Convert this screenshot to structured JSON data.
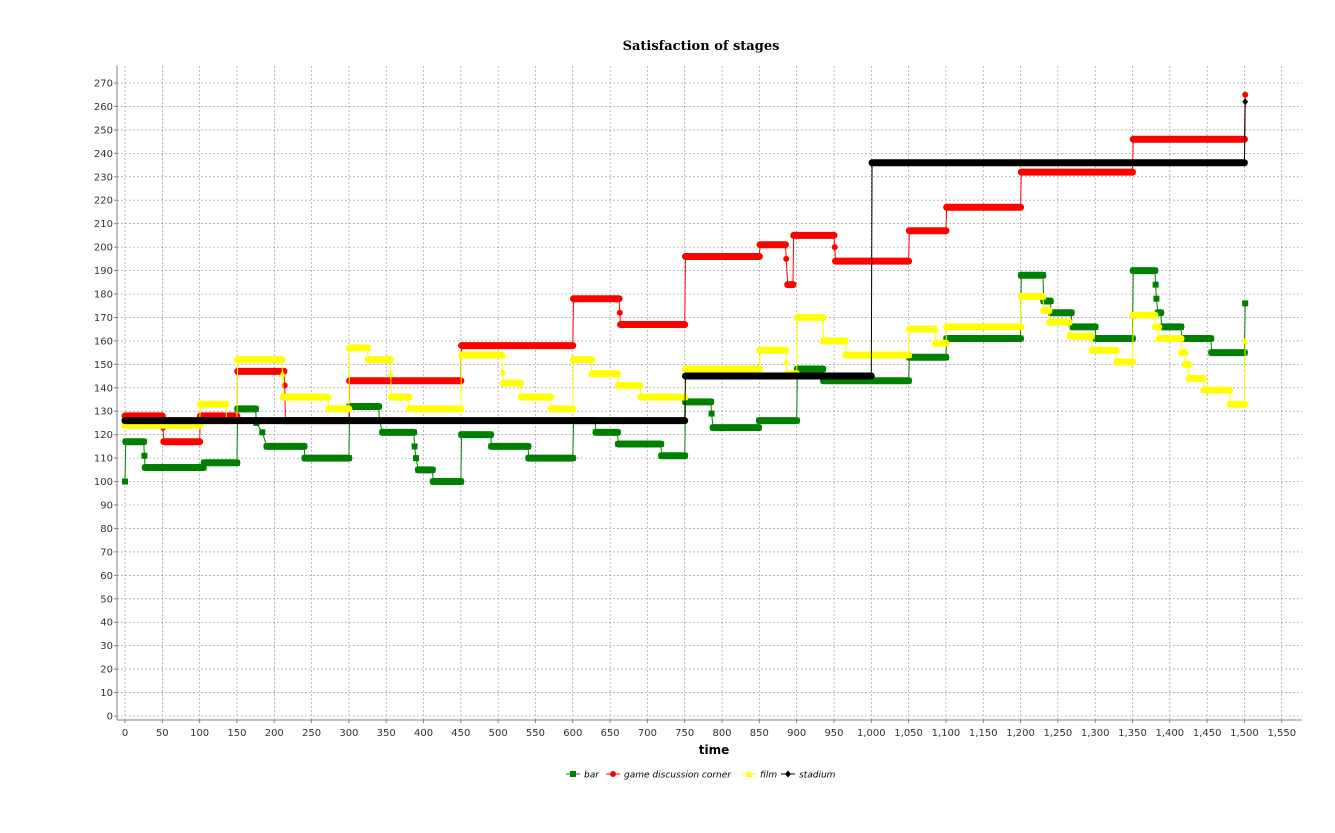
{
  "chart_data": {
    "type": "line",
    "step": true,
    "title": "Satisfaction of stages",
    "xlabel": "time",
    "ylabel": "",
    "xlim": [
      0,
      1580
    ],
    "ylim": [
      0,
      275
    ],
    "xticks": [
      0,
      50,
      100,
      150,
      200,
      250,
      300,
      350,
      400,
      450,
      500,
      550,
      600,
      650,
      700,
      750,
      800,
      850,
      900,
      950,
      1000,
      1050,
      1100,
      1150,
      1200,
      1250,
      1300,
      1350,
      1400,
      1450,
      1500,
      1550
    ],
    "xtick_labels": [
      "0",
      "50",
      "100",
      "150",
      "200",
      "250",
      "300",
      "350",
      "400",
      "450",
      "500",
      "550",
      "600",
      "650",
      "700",
      "750",
      "800",
      "850",
      "900",
      "950",
      "1,000",
      "1,050",
      "1,100",
      "1,150",
      "1,200",
      "1,250",
      "1,300",
      "1,350",
      "1,400",
      "1,450",
      "1,500",
      "1,550"
    ],
    "yticks": [
      0,
      10,
      20,
      30,
      40,
      50,
      60,
      70,
      80,
      90,
      100,
      110,
      120,
      130,
      140,
      150,
      160,
      170,
      180,
      190,
      200,
      210,
      220,
      230,
      240,
      250,
      260,
      270
    ],
    "ytick_labels": [
      "0",
      "10",
      "20",
      "30",
      "40",
      "50",
      "60",
      "70",
      "80",
      "90",
      "100",
      "110",
      "120",
      "130",
      "140",
      "150",
      "160",
      "170",
      "180",
      "190",
      "200",
      "210",
      "220",
      "230",
      "240",
      "250",
      "260",
      "270"
    ],
    "grid": true,
    "legend_position": "bottom",
    "series": [
      {
        "name": "bar",
        "color": "#008000",
        "marker": "square",
        "points": [
          [
            0,
            100
          ],
          [
            1,
            117
          ],
          [
            25,
            117
          ],
          [
            26,
            111
          ],
          [
            27,
            106
          ],
          [
            105,
            106
          ],
          [
            106,
            108
          ],
          [
            150,
            108
          ],
          [
            151,
            131
          ],
          [
            175,
            131
          ],
          [
            176,
            125
          ],
          [
            184,
            121
          ],
          [
            190,
            115
          ],
          [
            240,
            115
          ],
          [
            241,
            110
          ],
          [
            300,
            110
          ],
          [
            301,
            132
          ],
          [
            340,
            132
          ],
          [
            341,
            126
          ],
          [
            345,
            121
          ],
          [
            387,
            121
          ],
          [
            388,
            115
          ],
          [
            390,
            110
          ],
          [
            393,
            105
          ],
          [
            412,
            105
          ],
          [
            413,
            100
          ],
          [
            450,
            100
          ],
          [
            451,
            120
          ],
          [
            490,
            120
          ],
          [
            491,
            115
          ],
          [
            540,
            115
          ],
          [
            541,
            110
          ],
          [
            600,
            110
          ],
          [
            601,
            126
          ],
          [
            630,
            126
          ],
          [
            631,
            121
          ],
          [
            660,
            121
          ],
          [
            661,
            116
          ],
          [
            718,
            116
          ],
          [
            719,
            111
          ],
          [
            750,
            111
          ],
          [
            751,
            134
          ],
          [
            785,
            134
          ],
          [
            786,
            129
          ],
          [
            788,
            123
          ],
          [
            849,
            123
          ],
          [
            850,
            126
          ],
          [
            900,
            126
          ],
          [
            901,
            148
          ],
          [
            935,
            148
          ],
          [
            936,
            143
          ],
          [
            1050,
            143
          ],
          [
            1051,
            153
          ],
          [
            1100,
            153
          ],
          [
            1101,
            161
          ],
          [
            1200,
            161
          ],
          [
            1201,
            188
          ],
          [
            1230,
            188
          ],
          [
            1231,
            177
          ],
          [
            1240,
            177
          ],
          [
            1241,
            172
          ],
          [
            1268,
            172
          ],
          [
            1269,
            166
          ],
          [
            1300,
            166
          ],
          [
            1301,
            161
          ],
          [
            1350,
            161
          ],
          [
            1351,
            190
          ],
          [
            1380,
            190
          ],
          [
            1381,
            184
          ],
          [
            1382,
            178
          ],
          [
            1384,
            172
          ],
          [
            1388,
            172
          ],
          [
            1389,
            166
          ],
          [
            1415,
            166
          ],
          [
            1416,
            161
          ],
          [
            1455,
            161
          ],
          [
            1456,
            155
          ],
          [
            1500,
            155
          ],
          [
            1501,
            176
          ]
        ]
      },
      {
        "name": "game discussion corner",
        "color": "#ff0000",
        "marker": "circle",
        "points": [
          [
            0,
            128
          ],
          [
            50,
            128
          ],
          [
            51,
            123
          ],
          [
            52,
            117
          ],
          [
            100,
            117
          ],
          [
            101,
            128
          ],
          [
            150,
            128
          ],
          [
            151,
            147
          ],
          [
            213,
            147
          ],
          [
            214,
            141
          ],
          [
            215,
            126
          ],
          [
            300,
            126
          ],
          [
            301,
            143
          ],
          [
            450,
            143
          ],
          [
            451,
            158
          ],
          [
            600,
            158
          ],
          [
            601,
            178
          ],
          [
            662,
            178
          ],
          [
            663,
            172
          ],
          [
            664,
            167
          ],
          [
            750,
            167
          ],
          [
            751,
            196
          ],
          [
            850,
            196
          ],
          [
            851,
            201
          ],
          [
            885,
            201
          ],
          [
            886,
            195
          ],
          [
            888,
            184
          ],
          [
            895,
            184
          ],
          [
            896,
            205
          ],
          [
            950,
            205
          ],
          [
            951,
            200
          ],
          [
            952,
            194
          ],
          [
            1050,
            194
          ],
          [
            1051,
            207
          ],
          [
            1100,
            207
          ],
          [
            1101,
            217
          ],
          [
            1200,
            217
          ],
          [
            1201,
            232
          ],
          [
            1350,
            232
          ],
          [
            1351,
            246
          ],
          [
            1500,
            246
          ],
          [
            1501,
            265
          ]
        ]
      },
      {
        "name": "film",
        "color": "#ffff00",
        "marker": "triangle",
        "points": [
          [
            0,
            124
          ],
          [
            100,
            124
          ],
          [
            101,
            133
          ],
          [
            135,
            133
          ],
          [
            136,
            126
          ],
          [
            150,
            126
          ],
          [
            151,
            152
          ],
          [
            210,
            152
          ],
          [
            211,
            146
          ],
          [
            212,
            136
          ],
          [
            272,
            136
          ],
          [
            273,
            131
          ],
          [
            300,
            131
          ],
          [
            301,
            157
          ],
          [
            325,
            157
          ],
          [
            326,
            152
          ],
          [
            355,
            152
          ],
          [
            356,
            146
          ],
          [
            357,
            136
          ],
          [
            380,
            136
          ],
          [
            381,
            131
          ],
          [
            450,
            131
          ],
          [
            451,
            154
          ],
          [
            505,
            154
          ],
          [
            506,
            147
          ],
          [
            507,
            142
          ],
          [
            530,
            142
          ],
          [
            531,
            136
          ],
          [
            570,
            136
          ],
          [
            571,
            131
          ],
          [
            600,
            131
          ],
          [
            601,
            152
          ],
          [
            625,
            152
          ],
          [
            626,
            146
          ],
          [
            660,
            146
          ],
          [
            661,
            141
          ],
          [
            690,
            141
          ],
          [
            691,
            136
          ],
          [
            750,
            136
          ],
          [
            751,
            148
          ],
          [
            850,
            148
          ],
          [
            851,
            156
          ],
          [
            885,
            156
          ],
          [
            886,
            151
          ],
          [
            888,
            146
          ],
          [
            900,
            146
          ],
          [
            901,
            170
          ],
          [
            935,
            170
          ],
          [
            936,
            160
          ],
          [
            965,
            160
          ],
          [
            966,
            154
          ],
          [
            1050,
            154
          ],
          [
            1051,
            165
          ],
          [
            1085,
            165
          ],
          [
            1086,
            159
          ],
          [
            1100,
            159
          ],
          [
            1101,
            166
          ],
          [
            1200,
            166
          ],
          [
            1201,
            179
          ],
          [
            1230,
            179
          ],
          [
            1231,
            173
          ],
          [
            1238,
            173
          ],
          [
            1239,
            168
          ],
          [
            1265,
            168
          ],
          [
            1266,
            162
          ],
          [
            1295,
            162
          ],
          [
            1296,
            156
          ],
          [
            1328,
            156
          ],
          [
            1329,
            151
          ],
          [
            1350,
            151
          ],
          [
            1351,
            171
          ],
          [
            1380,
            171
          ],
          [
            1381,
            166
          ],
          [
            1385,
            166
          ],
          [
            1386,
            161
          ],
          [
            1415,
            161
          ],
          [
            1416,
            155
          ],
          [
            1420,
            155
          ],
          [
            1421,
            150
          ],
          [
            1425,
            150
          ],
          [
            1426,
            144
          ],
          [
            1445,
            144
          ],
          [
            1446,
            139
          ],
          [
            1480,
            139
          ],
          [
            1481,
            133
          ],
          [
            1500,
            133
          ],
          [
            1501,
            160
          ]
        ]
      },
      {
        "name": "stadium",
        "color": "#000000",
        "marker": "diamond",
        "points": [
          [
            0,
            126
          ],
          [
            750,
            126
          ],
          [
            751,
            145
          ],
          [
            1000,
            145
          ],
          [
            1001,
            236
          ],
          [
            1500,
            236
          ],
          [
            1501,
            262
          ]
        ]
      }
    ]
  }
}
